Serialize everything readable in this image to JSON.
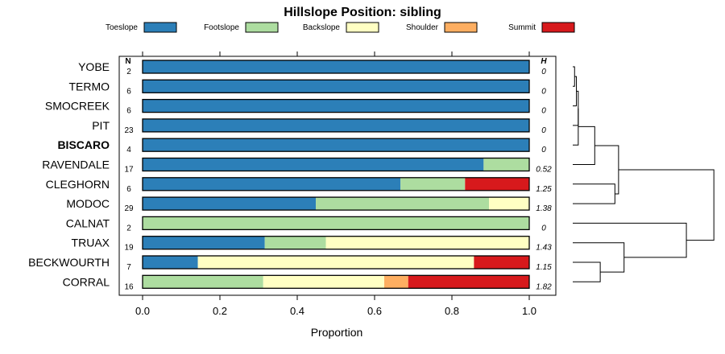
{
  "chart_data": {
    "type": "bar",
    "orientation": "horizontal",
    "stacked": true,
    "title": "Hillslope Position: sibling",
    "xlabel": "Proportion",
    "ylabel": "",
    "xlim": [
      0,
      1
    ],
    "xticks": [
      "0.0",
      "0.2",
      "0.4",
      "0.6",
      "0.8",
      "1.0"
    ],
    "n_header": "N",
    "h_header": "H",
    "legend_position": "top",
    "series": [
      {
        "name": "Toeslope",
        "color": "#2c7fb8"
      },
      {
        "name": "Footslope",
        "color": "#addda0"
      },
      {
        "name": "Backslope",
        "color": "#ffffc3"
      },
      {
        "name": "Shoulder",
        "color": "#fdae61"
      },
      {
        "name": "Summit",
        "color": "#d7191c"
      }
    ],
    "rows": [
      {
        "label": "YOBE",
        "bold": false,
        "n": "2",
        "h": "0",
        "values": [
          1.0,
          0,
          0,
          0,
          0
        ]
      },
      {
        "label": "TERMO",
        "bold": false,
        "n": "6",
        "h": "0",
        "values": [
          1.0,
          0,
          0,
          0,
          0
        ]
      },
      {
        "label": "SMOCREEK",
        "bold": false,
        "n": "6",
        "h": "0",
        "values": [
          1.0,
          0,
          0,
          0,
          0
        ]
      },
      {
        "label": "PIT",
        "bold": false,
        "n": "23",
        "h": "0",
        "values": [
          1.0,
          0,
          0,
          0,
          0
        ]
      },
      {
        "label": "BISCARO",
        "bold": true,
        "n": "4",
        "h": "0",
        "values": [
          1.0,
          0,
          0,
          0,
          0
        ]
      },
      {
        "label": "RAVENDALE",
        "bold": false,
        "n": "17",
        "h": "0.52",
        "values": [
          0.882,
          0.118,
          0,
          0,
          0
        ]
      },
      {
        "label": "CLEGHORN",
        "bold": false,
        "n": "6",
        "h": "1.25",
        "values": [
          0.667,
          0.167,
          0,
          0,
          0.166
        ]
      },
      {
        "label": "MODOC",
        "bold": false,
        "n": "29",
        "h": "1.38",
        "values": [
          0.448,
          0.448,
          0.104,
          0,
          0
        ]
      },
      {
        "label": "CALNAT",
        "bold": false,
        "n": "2",
        "h": "0",
        "values": [
          0,
          1.0,
          0,
          0,
          0
        ]
      },
      {
        "label": "TRUAX",
        "bold": false,
        "n": "19",
        "h": "1.43",
        "values": [
          0.316,
          0.158,
          0.526,
          0,
          0
        ]
      },
      {
        "label": "BECKWOURTH",
        "bold": false,
        "n": "7",
        "h": "1.15",
        "values": [
          0.143,
          0,
          0.714,
          0,
          0.143
        ]
      },
      {
        "label": "CORRAL",
        "bold": false,
        "n": "16",
        "h": "1.82",
        "values": [
          0,
          0.312,
          0.313,
          0.062,
          0.313
        ]
      }
    ],
    "dendrogram": {
      "leaf_order": [
        "YOBE",
        "TERMO",
        "SMOCREEK",
        "PIT",
        "BISCARO",
        "RAVENDALE",
        "CLEGHORN",
        "MODOC",
        "CALNAT",
        "TRUAX",
        "BECKWOURTH",
        "CORRAL"
      ],
      "merges": [
        {
          "left": 0,
          "right": 1,
          "height": 0.02
        },
        {
          "left": 12,
          "right": 2,
          "height": 0.04
        },
        {
          "left": 13,
          "right": 3,
          "height": 0.06
        },
        {
          "left": 14,
          "right": 4,
          "height": 0.06
        },
        {
          "left": 15,
          "right": 5,
          "height": 0.24
        },
        {
          "left": 6,
          "right": 7,
          "height": 0.46
        },
        {
          "left": 16,
          "right": 17,
          "height": 0.5
        },
        {
          "left": 10,
          "right": 11,
          "height": 0.3
        },
        {
          "left": 9,
          "right": 19,
          "height": 0.56
        },
        {
          "left": 8,
          "right": 20,
          "height": 1.24
        },
        {
          "left": 18,
          "right": 21,
          "height": 1.54
        }
      ],
      "max_height": 1.6
    }
  }
}
